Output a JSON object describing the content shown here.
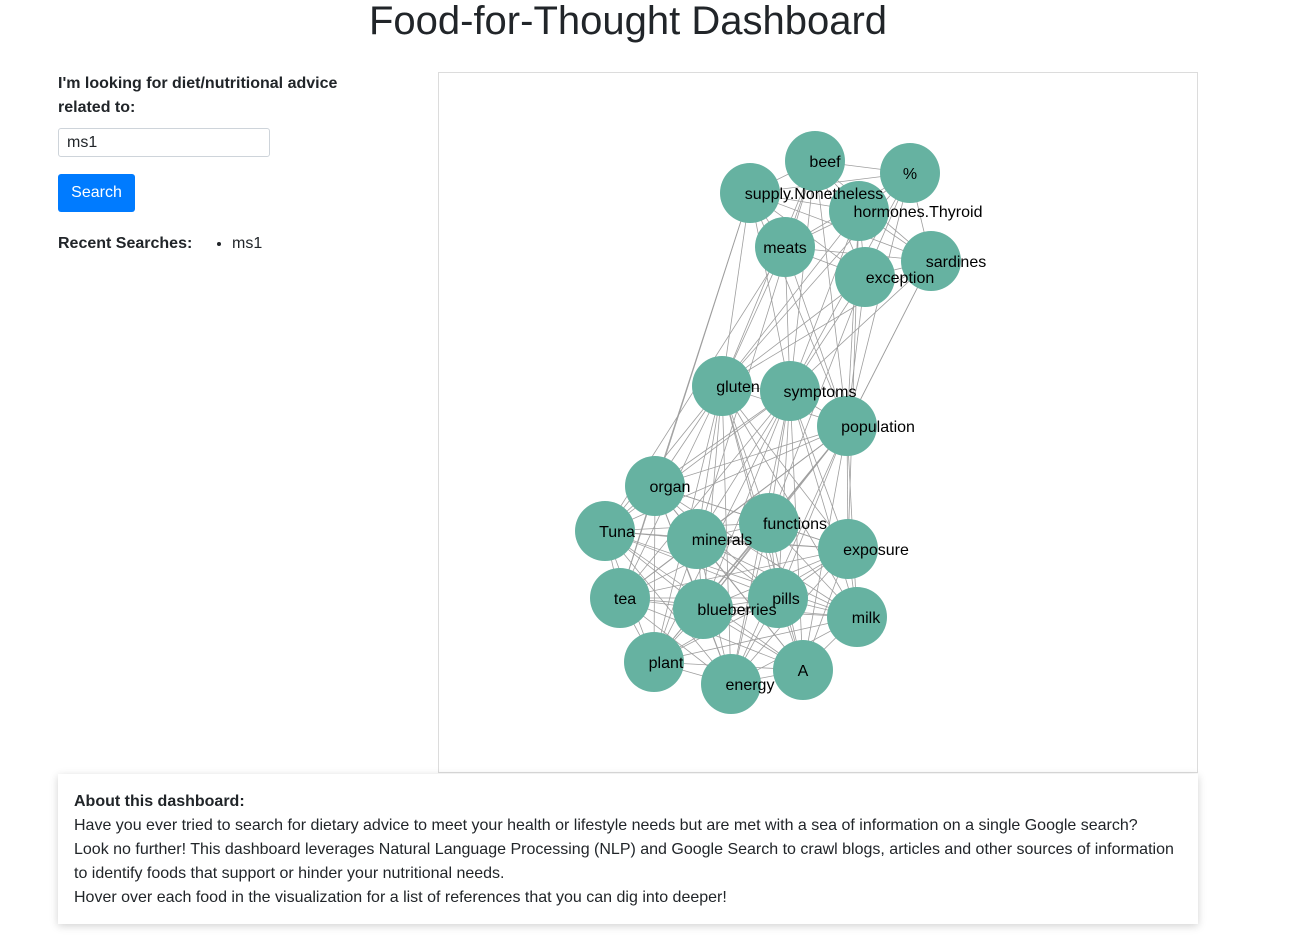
{
  "header": {
    "title": "Food-for-Thought Dashboard"
  },
  "search": {
    "prompt": "I'm looking for diet/nutritional advice related to:",
    "value": "ms1",
    "button_label": "Search"
  },
  "recent": {
    "label": "Recent Searches:",
    "items": [
      "ms1"
    ]
  },
  "graph": {
    "node_color": "#66b2a1",
    "edge_color": "#9e9e9e",
    "nodes": [
      {
        "id": "beef",
        "label": "beef"
      },
      {
        "id": "percent",
        "label": "%"
      },
      {
        "id": "supply",
        "label": "supply.Nonetheless"
      },
      {
        "id": "hormones",
        "label": "hormones.Thyroid"
      },
      {
        "id": "meats",
        "label": "meats"
      },
      {
        "id": "sardines",
        "label": "sardines"
      },
      {
        "id": "exception",
        "label": "exception"
      },
      {
        "id": "gluten",
        "label": "gluten"
      },
      {
        "id": "symptoms",
        "label": "symptoms"
      },
      {
        "id": "population",
        "label": "population"
      },
      {
        "id": "organ",
        "label": "organ"
      },
      {
        "id": "tuna",
        "label": "Tuna"
      },
      {
        "id": "minerals",
        "label": "minerals"
      },
      {
        "id": "functions",
        "label": "functions"
      },
      {
        "id": "exposure",
        "label": "exposure"
      },
      {
        "id": "tea",
        "label": "tea"
      },
      {
        "id": "blueberries",
        "label": "blueberries"
      },
      {
        "id": "pills",
        "label": "pills"
      },
      {
        "id": "milk",
        "label": "milk"
      },
      {
        "id": "plant",
        "label": "plant"
      },
      {
        "id": "a",
        "label": "A"
      },
      {
        "id": "energy",
        "label": "energy"
      }
    ]
  },
  "about": {
    "heading": "About this dashboard:",
    "lines": [
      "Have you ever tried to search for dietary advice to meet your health or lifestyle needs but are met with a sea of information on a single Google search?",
      "Look no further! This dashboard leverages Natural Language Processing (NLP) and Google Search to crawl blogs, articles and other sources of information to identify foods that support or hinder your nutritional needs.",
      "Hover over each food in the visualization for a list of references that you can dig into deeper!"
    ]
  }
}
